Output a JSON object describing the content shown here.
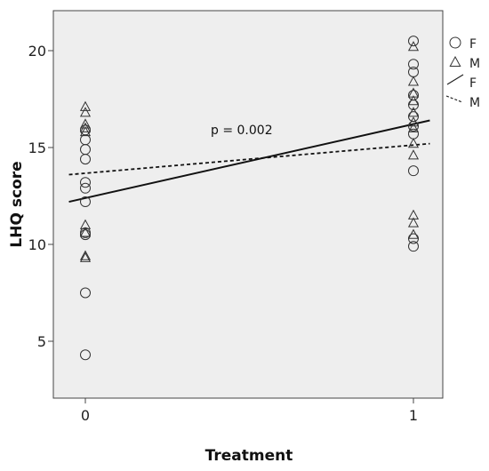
{
  "chart_data": {
    "type": "scatter",
    "xlabel": "Treatment",
    "ylabel": "LHQ score",
    "xticks": [
      0,
      1
    ],
    "yticks": [
      5,
      10,
      15,
      20
    ],
    "xlim": [
      -0.05,
      1.05
    ],
    "ylim": [
      1.5,
      21.5
    ],
    "grid": false,
    "legend_position": "top-right outside",
    "background": "#eeeeee",
    "annotation": "p = 0.002",
    "series": [
      {
        "name": "F",
        "marker": "circle",
        "points": [
          {
            "x": 0,
            "y": 15.9
          },
          {
            "x": 0,
            "y": 15.4
          },
          {
            "x": 0,
            "y": 14.9
          },
          {
            "x": 0,
            "y": 14.4
          },
          {
            "x": 0,
            "y": 13.2
          },
          {
            "x": 0,
            "y": 12.9
          },
          {
            "x": 0,
            "y": 12.2
          },
          {
            "x": 0,
            "y": 10.6
          },
          {
            "x": 0,
            "y": 10.5
          },
          {
            "x": 0,
            "y": 7.5
          },
          {
            "x": 0,
            "y": 4.3
          },
          {
            "x": 1,
            "y": 20.5
          },
          {
            "x": 1,
            "y": 19.3
          },
          {
            "x": 1,
            "y": 18.9
          },
          {
            "x": 1,
            "y": 17.7
          },
          {
            "x": 1,
            "y": 17.2
          },
          {
            "x": 1,
            "y": 16.6
          },
          {
            "x": 1,
            "y": 16.1
          },
          {
            "x": 1,
            "y": 15.7
          },
          {
            "x": 1,
            "y": 13.8
          },
          {
            "x": 1,
            "y": 10.3
          },
          {
            "x": 1,
            "y": 9.9
          }
        ]
      },
      {
        "name": "M",
        "marker": "triangle",
        "points": [
          {
            "x": 0,
            "y": 17.1
          },
          {
            "x": 0,
            "y": 16.8
          },
          {
            "x": 0,
            "y": 16.2
          },
          {
            "x": 0,
            "y": 16.0
          },
          {
            "x": 0,
            "y": 15.8
          },
          {
            "x": 0,
            "y": 11.0
          },
          {
            "x": 0,
            "y": 10.6
          },
          {
            "x": 0,
            "y": 9.4
          },
          {
            "x": 0,
            "y": 9.3
          },
          {
            "x": 1,
            "y": 20.2
          },
          {
            "x": 1,
            "y": 18.4
          },
          {
            "x": 1,
            "y": 17.8
          },
          {
            "x": 1,
            "y": 17.4
          },
          {
            "x": 1,
            "y": 16.8
          },
          {
            "x": 1,
            "y": 16.3
          },
          {
            "x": 1,
            "y": 16.0
          },
          {
            "x": 1,
            "y": 15.2
          },
          {
            "x": 1,
            "y": 14.6
          },
          {
            "x": 1,
            "y": 11.5
          },
          {
            "x": 1,
            "y": 11.1
          },
          {
            "x": 1,
            "y": 10.5
          }
        ]
      }
    ],
    "fit_lines": [
      {
        "name": "F",
        "style": "solid",
        "x": [
          -0.05,
          1.05
        ],
        "y": [
          12.2,
          16.4
        ]
      },
      {
        "name": "M",
        "style": "dashed",
        "x": [
          -0.05,
          1.05
        ],
        "y": [
          13.6,
          15.2
        ]
      }
    ],
    "legend": [
      {
        "symbol": "circle",
        "label": "F"
      },
      {
        "symbol": "triangle",
        "label": "M"
      },
      {
        "symbol": "solid-line",
        "label": "F"
      },
      {
        "symbol": "dashed-line",
        "label": "M"
      }
    ]
  }
}
